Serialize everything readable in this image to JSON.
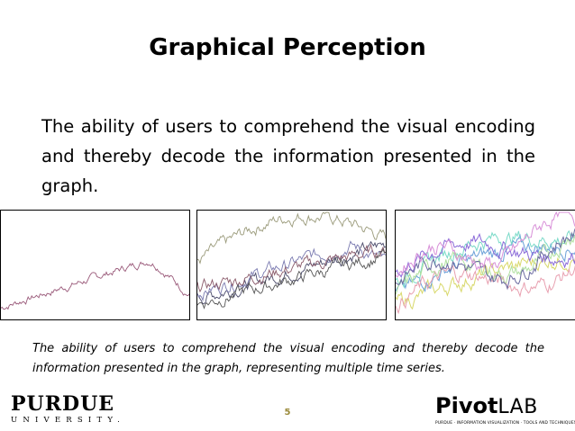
{
  "slide": {
    "title": "Graphical Perception",
    "body": "The ability of users to comprehend the visual encoding and thereby decode the information presented in the graph.",
    "caption": "The ability of users to comprehend the visual encoding and thereby decode the information presented in the graph, representing multiple time series.",
    "page_number": "5"
  },
  "footer": {
    "university_name": "PURDUE",
    "university_sub": "UNIVERSITY.",
    "lab_name_bold": "Pivot",
    "lab_name_light": "LAB",
    "lab_tagline": "PURDUE · INFORMATION VISUALIZATION · TOOLS AND TECHNIQUES"
  },
  "figures": {
    "panel_1_colors": [
      "#9a5a7a"
    ],
    "panel_2_colors": [
      "#9a9a7a",
      "#4a4a6a",
      "#7a7ab0",
      "#8a5a6a",
      "#555555"
    ],
    "panel_3_colors": [
      "#d8d86a",
      "#6aa0d8",
      "#7adac8",
      "#8a6ad8",
      "#e8a0b0",
      "#b0e0a0",
      "#6a6aa0",
      "#d890d8"
    ]
  }
}
